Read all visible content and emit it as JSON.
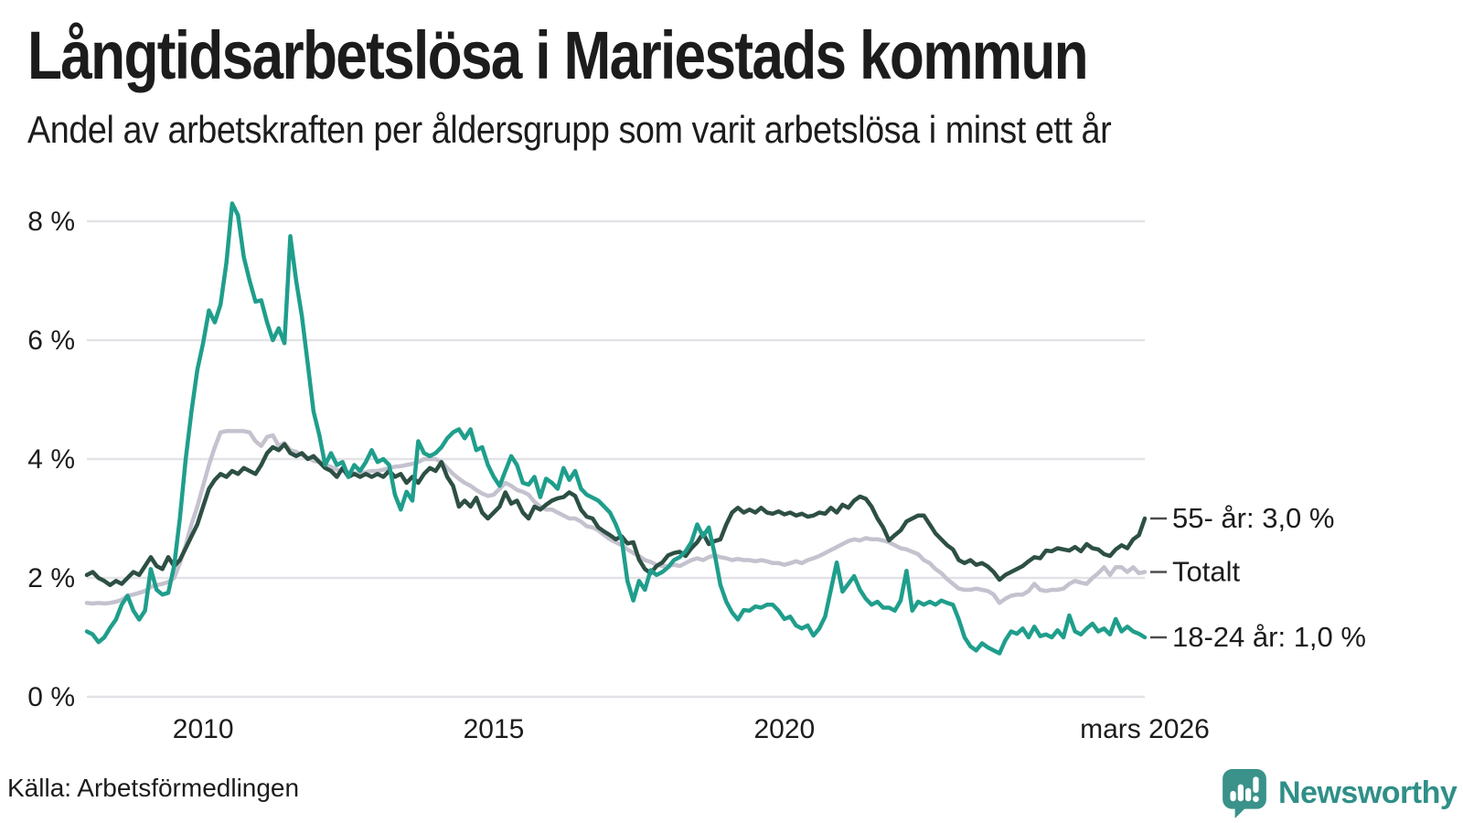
{
  "header": {
    "title": "Långtidsarbetslösa i Mariestads kommun",
    "subtitle": "Andel av arbetskraften per åldersgrupp som varit arbetslösa i minst ett år"
  },
  "footer": {
    "source": "Källa: Arbetsförmedlingen",
    "brand": "Newsworthy"
  },
  "colors": {
    "teal_line": "#1f9e8c",
    "dark_line": "#2d4f44",
    "gray_line": "#c4c2ce",
    "grid": "#e2e2e7",
    "annotation_dash": "#4d4d4d",
    "brand_teal": "#2f8f88",
    "logo_fill": "#3a928a"
  },
  "chart_data": {
    "type": "line",
    "title": "Långtidsarbetslösa i Mariestads kommun",
    "xlabel": "",
    "ylabel": "",
    "grid": true,
    "legend_position": "right-end-labels",
    "x_start": 2008.0,
    "x_step": 0.1,
    "x_end": 2026.2,
    "ylim": [
      0,
      8.8
    ],
    "y_ticks": [
      {
        "value": 0,
        "label": "0 %"
      },
      {
        "value": 2,
        "label": "2 %"
      },
      {
        "value": 4,
        "label": "4 %"
      },
      {
        "value": 6,
        "label": "6 %"
      },
      {
        "value": 8,
        "label": "8 %"
      }
    ],
    "x_ticks": [
      {
        "value": 2010,
        "label": "2010"
      },
      {
        "value": 2015,
        "label": "2015"
      },
      {
        "value": 2020,
        "label": "2020"
      },
      {
        "value": 2026.2,
        "label": "mars 2026"
      }
    ],
    "series": [
      {
        "name": "Totalt",
        "end_label": "Totalt",
        "color": "#c4c2ce",
        "values": [
          1.58,
          1.57,
          1.58,
          1.57,
          1.58,
          1.6,
          1.63,
          1.7,
          1.72,
          1.75,
          1.78,
          1.85,
          1.88,
          1.9,
          1.93,
          2.0,
          2.25,
          2.55,
          2.9,
          3.2,
          3.55,
          3.9,
          4.2,
          4.45,
          4.47,
          4.47,
          4.47,
          4.47,
          4.45,
          4.3,
          4.22,
          4.37,
          4.4,
          4.22,
          4.27,
          4.15,
          4.12,
          4.07,
          4.02,
          3.97,
          3.95,
          3.9,
          3.87,
          3.82,
          3.8,
          3.78,
          3.76,
          3.76,
          3.78,
          3.8,
          3.8,
          3.82,
          3.85,
          3.87,
          3.88,
          3.9,
          3.92,
          3.95,
          4.0,
          4.0,
          4.0,
          3.95,
          3.85,
          3.75,
          3.67,
          3.6,
          3.55,
          3.48,
          3.42,
          3.38,
          3.4,
          3.5,
          3.6,
          3.55,
          3.48,
          3.45,
          3.4,
          3.28,
          3.2,
          3.15,
          3.15,
          3.1,
          3.05,
          3.0,
          3.0,
          2.95,
          2.87,
          2.85,
          2.8,
          2.72,
          2.65,
          2.6,
          2.55,
          2.48,
          2.42,
          2.37,
          2.3,
          2.27,
          2.22,
          2.2,
          2.2,
          2.22,
          2.2,
          2.25,
          2.3,
          2.33,
          2.3,
          2.35,
          2.38,
          2.35,
          2.33,
          2.3,
          2.32,
          2.3,
          2.3,
          2.28,
          2.3,
          2.28,
          2.25,
          2.25,
          2.22,
          2.25,
          2.28,
          2.25,
          2.3,
          2.33,
          2.37,
          2.42,
          2.47,
          2.52,
          2.57,
          2.62,
          2.65,
          2.63,
          2.67,
          2.65,
          2.65,
          2.63,
          2.6,
          2.55,
          2.5,
          2.48,
          2.44,
          2.4,
          2.3,
          2.25,
          2.15,
          2.08,
          1.98,
          1.9,
          1.82,
          1.8,
          1.8,
          1.82,
          1.8,
          1.78,
          1.72,
          1.58,
          1.65,
          1.7,
          1.72,
          1.72,
          1.78,
          1.9,
          1.8,
          1.78,
          1.8,
          1.8,
          1.82,
          1.9,
          1.95,
          1.92,
          1.9,
          2.0,
          2.08,
          2.18,
          2.05,
          2.18,
          2.18,
          2.1,
          2.18,
          2.08,
          2.1
        ]
      },
      {
        "name": "55- år",
        "end_label": "55- år: 3,0 %",
        "color": "#2d4f44",
        "values": [
          2.05,
          2.1,
          2.0,
          1.95,
          1.88,
          1.95,
          1.9,
          2.0,
          2.1,
          2.05,
          2.2,
          2.35,
          2.2,
          2.15,
          2.35,
          2.2,
          2.3,
          2.5,
          2.7,
          2.9,
          3.2,
          3.5,
          3.65,
          3.75,
          3.7,
          3.8,
          3.75,
          3.85,
          3.8,
          3.75,
          3.9,
          4.1,
          4.2,
          4.15,
          4.25,
          4.1,
          4.05,
          4.1,
          4.0,
          4.05,
          3.95,
          3.85,
          3.8,
          3.7,
          3.85,
          3.7,
          3.75,
          3.7,
          3.75,
          3.7,
          3.75,
          3.7,
          3.8,
          3.7,
          3.75,
          3.6,
          3.7,
          3.6,
          3.75,
          3.85,
          3.8,
          3.95,
          3.7,
          3.55,
          3.2,
          3.3,
          3.2,
          3.35,
          3.1,
          3.0,
          3.1,
          3.2,
          3.44,
          3.25,
          3.3,
          3.1,
          3.0,
          3.2,
          3.15,
          3.23,
          3.3,
          3.34,
          3.36,
          3.44,
          3.38,
          3.15,
          3.03,
          3.0,
          2.85,
          2.78,
          2.72,
          2.65,
          2.7,
          2.58,
          2.6,
          2.31,
          2.15,
          2.08,
          2.2,
          2.26,
          2.38,
          2.42,
          2.44,
          2.37,
          2.5,
          2.6,
          2.75,
          2.57,
          2.62,
          2.65,
          2.9,
          3.1,
          3.18,
          3.1,
          3.15,
          3.1,
          3.18,
          3.1,
          3.08,
          3.12,
          3.07,
          3.1,
          3.05,
          3.08,
          3.03,
          3.05,
          3.1,
          3.08,
          3.18,
          3.1,
          3.23,
          3.18,
          3.3,
          3.37,
          3.33,
          3.2,
          3.0,
          2.85,
          2.63,
          2.72,
          2.8,
          2.95,
          3.0,
          3.05,
          3.05,
          2.9,
          2.75,
          2.65,
          2.55,
          2.48,
          2.3,
          2.25,
          2.3,
          2.22,
          2.25,
          2.19,
          2.1,
          1.97,
          2.05,
          2.1,
          2.15,
          2.2,
          2.28,
          2.35,
          2.33,
          2.46,
          2.45,
          2.5,
          2.48,
          2.46,
          2.52,
          2.45,
          2.57,
          2.5,
          2.48,
          2.4,
          2.37,
          2.48,
          2.55,
          2.5,
          2.65,
          2.72,
          3.0
        ]
      },
      {
        "name": "18-24 år",
        "end_label": "18-24 år: 1,0 %",
        "color": "#1f9e8c",
        "values": [
          1.1,
          1.05,
          0.92,
          1.0,
          1.16,
          1.3,
          1.55,
          1.7,
          1.45,
          1.3,
          1.45,
          2.15,
          1.8,
          1.72,
          1.75,
          2.2,
          3.0,
          4.0,
          4.8,
          5.5,
          5.95,
          6.5,
          6.3,
          6.6,
          7.3,
          8.3,
          8.1,
          7.4,
          7.0,
          6.65,
          6.67,
          6.3,
          6.0,
          6.2,
          5.95,
          7.75,
          7.0,
          6.4,
          5.6,
          4.8,
          4.4,
          3.9,
          4.1,
          3.9,
          3.95,
          3.7,
          3.9,
          3.8,
          3.95,
          4.15,
          3.95,
          4.0,
          3.9,
          3.4,
          3.15,
          3.45,
          3.3,
          4.3,
          4.1,
          4.05,
          4.1,
          4.2,
          4.35,
          4.45,
          4.5,
          4.35,
          4.5,
          4.15,
          4.2,
          3.9,
          3.7,
          3.55,
          3.8,
          4.05,
          3.9,
          3.6,
          3.57,
          3.7,
          3.36,
          3.67,
          3.6,
          3.5,
          3.85,
          3.65,
          3.8,
          3.5,
          3.4,
          3.35,
          3.3,
          3.2,
          3.1,
          2.9,
          2.65,
          1.95,
          1.62,
          1.95,
          1.8,
          2.13,
          2.05,
          2.1,
          2.18,
          2.3,
          2.35,
          2.45,
          2.6,
          2.9,
          2.7,
          2.85,
          2.4,
          1.88,
          1.6,
          1.42,
          1.3,
          1.46,
          1.45,
          1.52,
          1.5,
          1.55,
          1.55,
          1.45,
          1.31,
          1.35,
          1.2,
          1.15,
          1.2,
          1.03,
          1.15,
          1.35,
          1.8,
          2.26,
          1.77,
          1.9,
          2.03,
          1.8,
          1.65,
          1.55,
          1.6,
          1.5,
          1.5,
          1.45,
          1.62,
          2.12,
          1.45,
          1.6,
          1.55,
          1.6,
          1.55,
          1.62,
          1.58,
          1.55,
          1.3,
          1.0,
          0.85,
          0.78,
          0.9,
          0.83,
          0.78,
          0.73,
          0.95,
          1.1,
          1.06,
          1.15,
          1.0,
          1.18,
          1.02,
          1.05,
          1.0,
          1.12,
          1.0,
          1.37,
          1.1,
          1.05,
          1.15,
          1.23,
          1.1,
          1.15,
          1.05,
          1.31,
          1.1,
          1.18,
          1.1,
          1.06,
          1.0
        ]
      }
    ]
  }
}
